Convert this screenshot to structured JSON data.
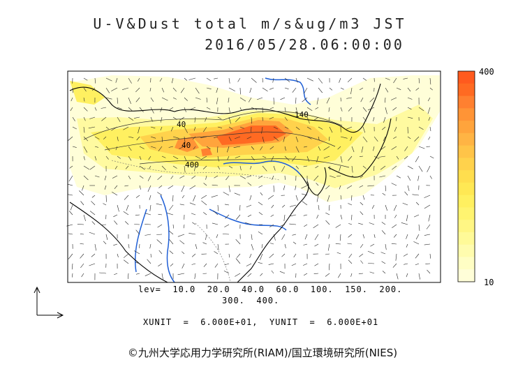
{
  "title": "U-V&Dust total m/s&ug/m3 JST",
  "timestamp": "2016/05/28.06:00:00",
  "colorbar": {
    "max_label": "400",
    "min_label": "10",
    "colors": [
      "#ff5a1e",
      "#ff6a22",
      "#ff8030",
      "#ff9436",
      "#ffa43c",
      "#ffb444",
      "#ffc448",
      "#ffd24c",
      "#ffde4e",
      "#ffe854",
      "#fff060",
      "#fff470",
      "#fff684",
      "#fffa98",
      "#fffcae",
      "#fffec4",
      "#fffed8"
    ]
  },
  "contour_labels": [
    "40",
    "140",
    "40",
    "400"
  ],
  "lev_line1": "lev=  10.0  20.0  40.0  60.0  100.  150.  200.",
  "lev_line2": "300.  400.",
  "units_line": "XUNIT  =  6.000E+01,  YUNIT  =  6.000E+01",
  "credit": "©九州大学応用力学研究所(RIAM)/国立環境研究所(NIES)"
}
